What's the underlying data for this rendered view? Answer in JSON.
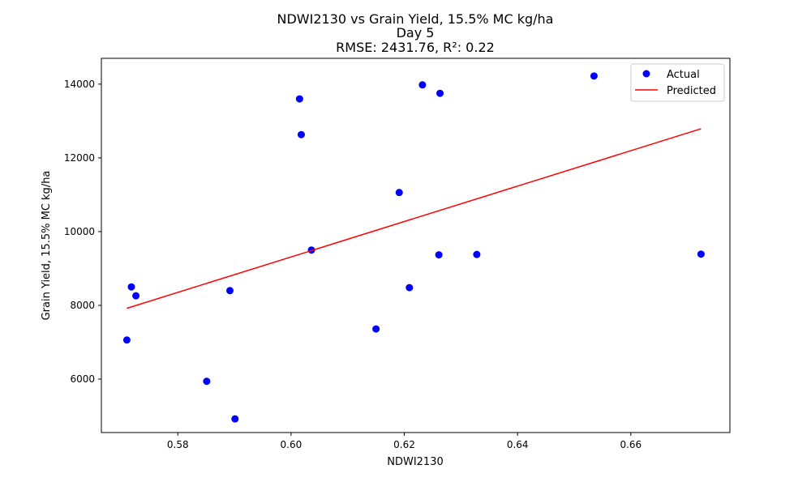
{
  "chart_data": {
    "type": "scatter",
    "title_lines": [
      "NDWI2130 vs Grain Yield, 15.5% MC kg/ha",
      "Day 5",
      "RMSE: 2431.76, R²: 0.22"
    ],
    "xlabel": "NDWI2130",
    "ylabel": "Grain Yield, 15.5% MC kg/ha",
    "xlim": [
      0.5665,
      0.6775
    ],
    "ylim": [
      4550,
      14700
    ],
    "xticks": [
      0.58,
      0.6,
      0.62,
      0.64,
      0.66
    ],
    "xtick_labels": [
      "0.58",
      "0.60",
      "0.62",
      "0.64",
      "0.66"
    ],
    "yticks": [
      6000,
      8000,
      10000,
      12000,
      14000
    ],
    "ytick_labels": [
      "6000",
      "8000",
      "10000",
      "12000",
      "14000"
    ],
    "grid": false,
    "legend_position": "top-right",
    "series": [
      {
        "name": "Actual",
        "kind": "scatter",
        "color": "#0000ff",
        "points": [
          {
            "x": 0.571,
            "y": 7060
          },
          {
            "x": 0.5718,
            "y": 8500
          },
          {
            "x": 0.5726,
            "y": 8260
          },
          {
            "x": 0.5851,
            "y": 5940
          },
          {
            "x": 0.5892,
            "y": 8400
          },
          {
            "x": 0.5901,
            "y": 4920
          },
          {
            "x": 0.6015,
            "y": 13600
          },
          {
            "x": 0.6018,
            "y": 12630
          },
          {
            "x": 0.6036,
            "y": 9500
          },
          {
            "x": 0.615,
            "y": 7360
          },
          {
            "x": 0.6191,
            "y": 11060
          },
          {
            "x": 0.6209,
            "y": 8480
          },
          {
            "x": 0.6232,
            "y": 13980
          },
          {
            "x": 0.6261,
            "y": 9370
          },
          {
            "x": 0.6263,
            "y": 13750
          },
          {
            "x": 0.6328,
            "y": 9380
          },
          {
            "x": 0.6535,
            "y": 14220
          },
          {
            "x": 0.6724,
            "y": 9390
          }
        ]
      },
      {
        "name": "Predicted",
        "kind": "line",
        "color": "#ff0000",
        "points": [
          {
            "x": 0.571,
            "y": 7920
          },
          {
            "x": 0.6724,
            "y": 12790
          }
        ]
      }
    ]
  }
}
